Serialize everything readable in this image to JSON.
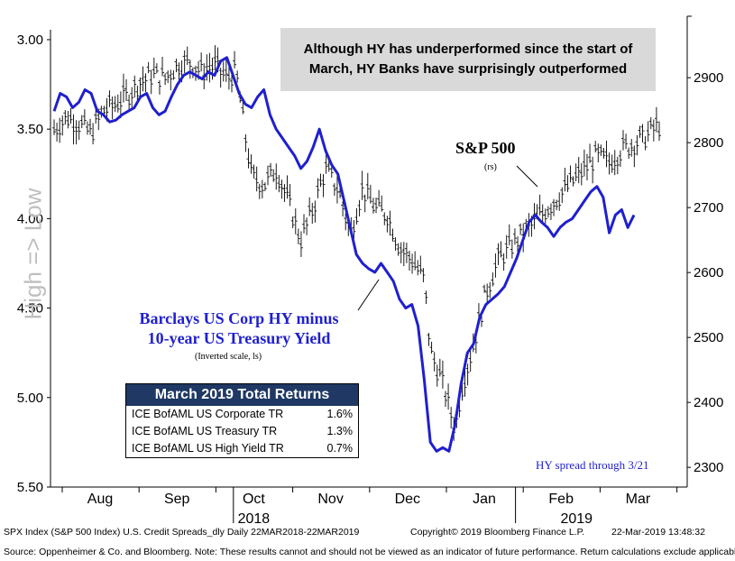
{
  "annotation": "Although HY has underperformed since the start of March, HY Banks have surprisingly outperformed",
  "y_left_label": "High => Low",
  "sp_label": "S&P 500",
  "sp_sub": "(rs)",
  "hy_label_line1": "Barclays US Corp HY minus",
  "hy_label_line2": "10-year US Treasury Yield",
  "hy_sub": "(Inverted scale, ls)",
  "hy_through": "HY spread through 3/21",
  "table": {
    "title": "March 2019 Total Returns",
    "rows": [
      {
        "name": "ICE BofAML US Corporate TR",
        "value": "1.6%"
      },
      {
        "name": "ICE BofAML US Treasury TR",
        "value": "1.3%"
      },
      {
        "name": "ICE BofAML US High Yield TR",
        "value": "0.7%"
      }
    ]
  },
  "footer": {
    "left": "SPX Index (S&P 500 Index) U.S. Credit Spreads_dly  Daily 22MAR2018-22MAR2019",
    "middle": "Copyright© 2019 Bloomberg Finance L.P.",
    "right": "22-Mar-2019 13:48:32"
  },
  "source": "Source: Oppenheimer & Co. and Bloomberg. Note:  These results cannot and should not be viewed as an indicator of future performance.  Return calculations exclude applicable costs.",
  "colors": {
    "hy_line": "#1f1fd0",
    "table_header": "#1f3864",
    "annotation_bg": "#d9d9d9",
    "ylabel": "#bfbfbf"
  },
  "chart_data": {
    "type": "line",
    "x_months": [
      "Aug",
      "Sep",
      "Oct",
      "Nov",
      "Dec",
      "Jan",
      "Feb",
      "Mar"
    ],
    "x_years": [
      "2018",
      "2019"
    ],
    "y_left": {
      "ticks": [
        "3.00",
        "3.50",
        "4.00",
        "4.50",
        "5.00",
        "5.50"
      ],
      "range": [
        2.97,
        5.5
      ],
      "inverted": true
    },
    "y_right": {
      "ticks": [
        "2300",
        "2400",
        "2500",
        "2600",
        "2700",
        "2800",
        "2900"
      ],
      "range": [
        2278,
        2978
      ]
    },
    "series": [
      {
        "name": "Barclays US Corp HY minus 10-year US Treasury Yield",
        "axis": "left",
        "points": [
          [
            1,
            3.4
          ],
          [
            1.1,
            3.3
          ],
          [
            1.2,
            3.32
          ],
          [
            1.3,
            3.38
          ],
          [
            1.4,
            3.35
          ],
          [
            1.5,
            3.28
          ],
          [
            1.6,
            3.3
          ],
          [
            1.7,
            3.4
          ],
          [
            1.8,
            3.42
          ],
          [
            1.9,
            3.46
          ],
          [
            2.0,
            3.45
          ],
          [
            2.1,
            3.42
          ],
          [
            2.2,
            3.4
          ],
          [
            2.3,
            3.38
          ],
          [
            2.4,
            3.32
          ],
          [
            2.5,
            3.3
          ],
          [
            2.6,
            3.38
          ],
          [
            2.7,
            3.42
          ],
          [
            2.8,
            3.4
          ],
          [
            2.9,
            3.32
          ],
          [
            3.0,
            3.25
          ],
          [
            3.1,
            3.2
          ],
          [
            3.2,
            3.18
          ],
          [
            3.3,
            3.2
          ],
          [
            3.4,
            3.22
          ],
          [
            3.5,
            3.18
          ],
          [
            3.6,
            3.2
          ],
          [
            3.7,
            3.12
          ],
          [
            3.8,
            3.1
          ],
          [
            3.9,
            3.2
          ],
          [
            4.0,
            3.3
          ],
          [
            4.1,
            3.36
          ],
          [
            4.2,
            3.38
          ],
          [
            4.3,
            3.32
          ],
          [
            4.4,
            3.28
          ],
          [
            4.5,
            3.42
          ],
          [
            4.6,
            3.5
          ],
          [
            4.7,
            3.55
          ],
          [
            4.8,
            3.6
          ],
          [
            4.9,
            3.65
          ],
          [
            5.0,
            3.72
          ],
          [
            5.1,
            3.68
          ],
          [
            5.2,
            3.6
          ],
          [
            5.3,
            3.5
          ],
          [
            5.4,
            3.62
          ],
          [
            5.5,
            3.7
          ],
          [
            5.6,
            3.75
          ],
          [
            5.7,
            3.9
          ],
          [
            5.8,
            4.05
          ],
          [
            5.9,
            4.2
          ],
          [
            6.0,
            4.25
          ],
          [
            6.1,
            4.28
          ],
          [
            6.2,
            4.3
          ],
          [
            6.3,
            4.25
          ],
          [
            6.4,
            4.3
          ],
          [
            6.5,
            4.35
          ],
          [
            6.6,
            4.45
          ],
          [
            6.7,
            4.5
          ],
          [
            6.8,
            4.48
          ],
          [
            6.9,
            4.6
          ],
          [
            7.0,
            4.9
          ],
          [
            7.1,
            5.25
          ],
          [
            7.2,
            5.3
          ],
          [
            7.3,
            5.28
          ],
          [
            7.4,
            5.3
          ],
          [
            7.5,
            5.15
          ],
          [
            7.6,
            4.92
          ],
          [
            7.7,
            4.75
          ],
          [
            7.8,
            4.7
          ],
          [
            7.9,
            4.55
          ],
          [
            8.0,
            4.48
          ],
          [
            8.1,
            4.45
          ],
          [
            8.2,
            4.42
          ],
          [
            8.3,
            4.38
          ],
          [
            8.4,
            4.3
          ],
          [
            8.5,
            4.22
          ],
          [
            8.6,
            4.12
          ],
          [
            8.7,
            4.02
          ],
          [
            8.8,
            3.98
          ],
          [
            8.9,
            4.02
          ],
          [
            9.0,
            4.05
          ],
          [
            9.1,
            4.1
          ],
          [
            9.2,
            4.05
          ],
          [
            9.3,
            4.02
          ],
          [
            9.4,
            4.0
          ],
          [
            9.5,
            3.95
          ],
          [
            9.6,
            3.9
          ],
          [
            9.7,
            3.85
          ],
          [
            9.8,
            3.82
          ],
          [
            9.9,
            3.88
          ],
          [
            10.0,
            4.08
          ],
          [
            10.1,
            3.98
          ],
          [
            10.2,
            3.95
          ],
          [
            10.3,
            4.05
          ],
          [
            10.4,
            3.98
          ]
        ]
      },
      {
        "name": "S&P 500",
        "axis": "right",
        "points": [
          [
            1,
            2820
          ],
          [
            1.2,
            2840
          ],
          [
            1.4,
            2830
          ],
          [
            1.6,
            2815
          ],
          [
            1.8,
            2850
          ],
          [
            2.0,
            2860
          ],
          [
            2.2,
            2875
          ],
          [
            2.4,
            2895
          ],
          [
            2.6,
            2905
          ],
          [
            2.8,
            2900
          ],
          [
            3.0,
            2920
          ],
          [
            3.2,
            2925
          ],
          [
            3.4,
            2910
          ],
          [
            3.6,
            2920
          ],
          [
            3.8,
            2900
          ],
          [
            3.95,
            2910
          ],
          [
            4.1,
            2810
          ],
          [
            4.2,
            2750
          ],
          [
            4.4,
            2735
          ],
          [
            4.6,
            2760
          ],
          [
            4.8,
            2710
          ],
          [
            5.0,
            2650
          ],
          [
            5.2,
            2700
          ],
          [
            5.4,
            2760
          ],
          [
            5.6,
            2730
          ],
          [
            5.8,
            2660
          ],
          [
            6.0,
            2730
          ],
          [
            6.2,
            2700
          ],
          [
            6.4,
            2690
          ],
          [
            6.6,
            2640
          ],
          [
            6.8,
            2620
          ],
          [
            7.0,
            2590
          ],
          [
            7.1,
            2480
          ],
          [
            7.3,
            2430
          ],
          [
            7.5,
            2360
          ],
          [
            7.6,
            2420
          ],
          [
            7.8,
            2490
          ],
          [
            8.0,
            2570
          ],
          [
            8.2,
            2620
          ],
          [
            8.4,
            2640
          ],
          [
            8.6,
            2660
          ],
          [
            8.8,
            2680
          ],
          [
            9.0,
            2700
          ],
          [
            9.2,
            2720
          ],
          [
            9.4,
            2740
          ],
          [
            9.6,
            2760
          ],
          [
            9.8,
            2780
          ],
          [
            10.0,
            2770
          ],
          [
            10.2,
            2790
          ],
          [
            10.4,
            2800
          ],
          [
            10.6,
            2810
          ],
          [
            10.7,
            2820
          ],
          [
            10.8,
            2830
          ],
          [
            10.85,
            2810
          ]
        ]
      }
    ]
  }
}
